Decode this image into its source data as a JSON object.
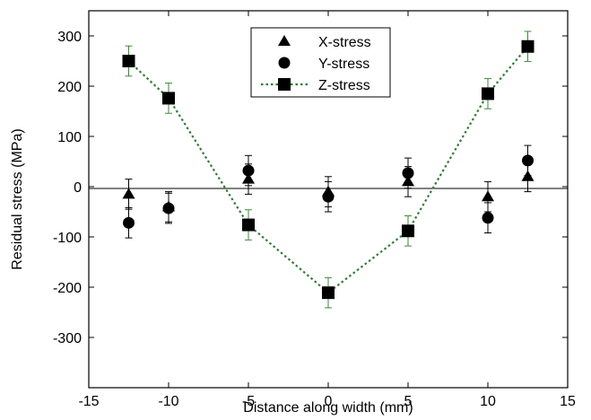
{
  "chart_data": {
    "type": "scatter",
    "xlabel": "Distance along width (mm)",
    "ylabel": "Residual stress (MPa)",
    "xlim": [
      -15,
      15
    ],
    "ylim": [
      -400,
      350
    ],
    "xticks": [
      -15,
      -10,
      -5,
      0,
      5,
      10,
      15
    ],
    "yticks": [
      -300,
      -200,
      -100,
      0,
      100,
      200,
      300
    ],
    "grid": false,
    "zero_line": true,
    "legend_position": "top-center",
    "series": [
      {
        "name": "X-stress",
        "marker": "triangle",
        "line": "none",
        "color": "#000000",
        "points": [
          {
            "x": -12.5,
            "y": -15,
            "err": 30
          },
          {
            "x": -10,
            "y": -40,
            "err": 30
          },
          {
            "x": -5,
            "y": 15,
            "err": 30
          },
          {
            "x": 0,
            "y": -10,
            "err": 30
          },
          {
            "x": 5,
            "y": 10,
            "err": 30
          },
          {
            "x": 10,
            "y": -20,
            "err": 30
          },
          {
            "x": 12.5,
            "y": 20,
            "err": 30
          }
        ]
      },
      {
        "name": "Y-stress",
        "marker": "circle",
        "line": "none",
        "color": "#000000",
        "points": [
          {
            "x": -12.5,
            "y": -72,
            "err": 30
          },
          {
            "x": -10,
            "y": -43,
            "err": 30
          },
          {
            "x": -5,
            "y": 32,
            "err": 30
          },
          {
            "x": 0,
            "y": -20,
            "err": 30
          },
          {
            "x": 5,
            "y": 27,
            "err": 30
          },
          {
            "x": 10,
            "y": -62,
            "err": 30
          },
          {
            "x": 12.5,
            "y": 52,
            "err": 30
          }
        ]
      },
      {
        "name": "Z-stress",
        "marker": "square",
        "line": "dotted",
        "color": "#000000",
        "line_color": "#2e7d32",
        "error_color": "#3a8a3a",
        "points": [
          {
            "x": -12.5,
            "y": 250,
            "err": 30
          },
          {
            "x": -10,
            "y": 176,
            "err": 30
          },
          {
            "x": -5,
            "y": -76,
            "err": 30
          },
          {
            "x": 0,
            "y": -211,
            "err": 30
          },
          {
            "x": 5,
            "y": -88,
            "err": 30
          },
          {
            "x": 10,
            "y": 185,
            "err": 30
          },
          {
            "x": 12.5,
            "y": 279,
            "err": 30
          }
        ]
      }
    ]
  }
}
